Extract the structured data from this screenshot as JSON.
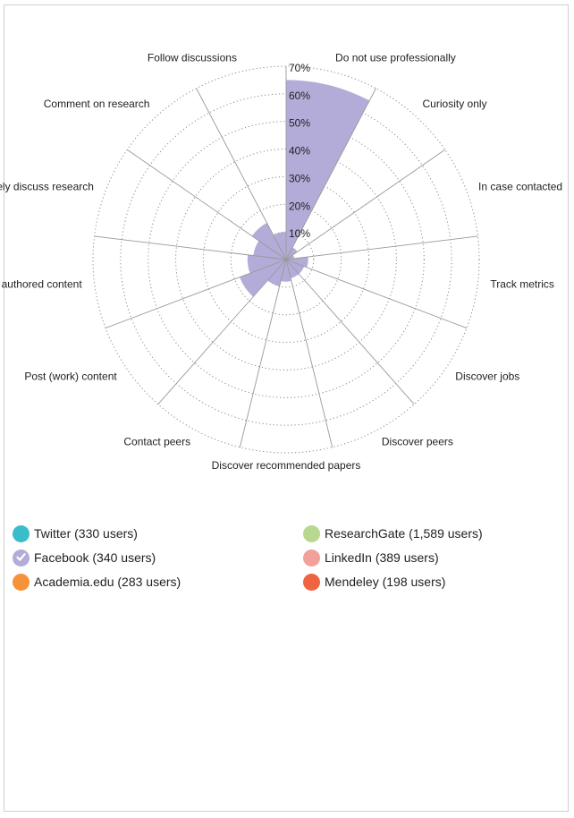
{
  "chart_data": {
    "type": "radial-bar",
    "categories": [
      "Do not use professionally",
      "Curiosity only",
      "In case contacted",
      "Track metrics",
      "Discover jobs",
      "Discover peers",
      "Discover recommended papers",
      "Contact peers",
      "Post (work) content",
      "Share links to authored content",
      "Actively discuss research",
      "Comment on research",
      "Follow discussions"
    ],
    "radial_ticks": [
      "10%",
      "20%",
      "30%",
      "40%",
      "50%",
      "60%",
      "70%"
    ],
    "rmax": 70,
    "series": [
      {
        "name": "Facebook",
        "color": "#b3acd9",
        "values": [
          65,
          5,
          3,
          8,
          7,
          7,
          8,
          10,
          18,
          14,
          12,
          15,
          10
        ]
      }
    ]
  },
  "legend": {
    "items": [
      {
        "label": "Twitter (330 users)",
        "color": "#3bbccb",
        "selected": false
      },
      {
        "label": "ResearchGate (1,589 users)",
        "color": "#b8d88f",
        "selected": false
      },
      {
        "label": "Facebook (340 users)",
        "color": "#b3acd9",
        "selected": true,
        "icon": "check-icon"
      },
      {
        "label": "LinkedIn (389 users)",
        "color": "#f2a09a",
        "selected": false
      },
      {
        "label": "Academia.edu (283 users)",
        "color": "#f6923a",
        "selected": false
      },
      {
        "label": "Mendeley (198 users)",
        "color": "#ee6440",
        "selected": false
      }
    ]
  }
}
